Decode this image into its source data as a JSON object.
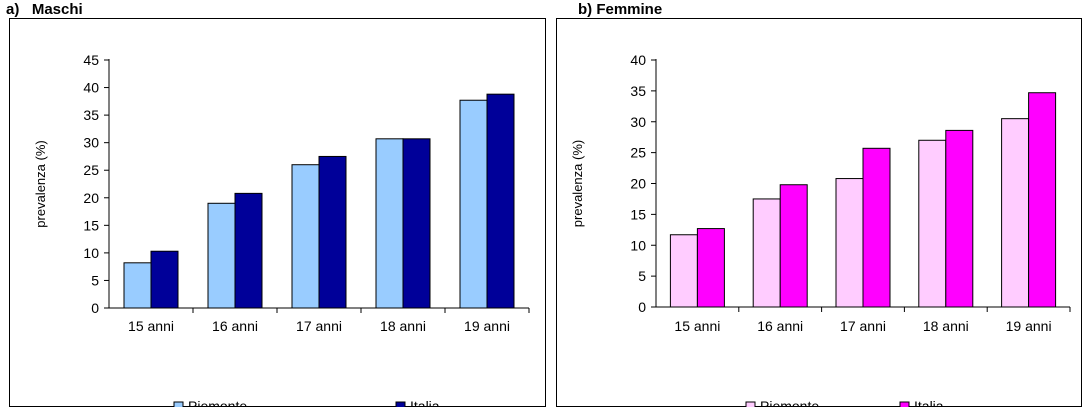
{
  "chart_data": [
    {
      "type": "bar",
      "panel_title": "a)   Maschi",
      "categories": [
        "15 anni",
        "16 anni",
        "17 anni",
        "18 anni",
        "19 anni"
      ],
      "series": [
        {
          "name": "Piemonte",
          "values": [
            8.2,
            19.0,
            26.0,
            30.7,
            37.7
          ],
          "color": "#99ccff"
        },
        {
          "name": "Italia",
          "values": [
            10.3,
            20.8,
            27.5,
            30.7,
            38.8
          ],
          "color": "#000099"
        }
      ],
      "ylabel": "prevalenza (%)",
      "ylim": [
        0,
        45
      ],
      "yticks": [
        0,
        5,
        10,
        15,
        20,
        25,
        30,
        35,
        40,
        45
      ],
      "grid": false,
      "legend_position": "bottom"
    },
    {
      "type": "bar",
      "panel_title": "b) Femmine",
      "categories": [
        "15 anni",
        "16 anni",
        "17 anni",
        "18 anni",
        "19 anni"
      ],
      "series": [
        {
          "name": "Piemonte",
          "values": [
            11.7,
            17.5,
            20.8,
            27.0,
            30.5
          ],
          "color": "#ffccff"
        },
        {
          "name": "Italia",
          "values": [
            12.7,
            19.8,
            25.7,
            28.6,
            34.7
          ],
          "color": "#ff00ff"
        }
      ],
      "ylabel": "prevalenza (%)",
      "ylim": [
        0,
        40
      ],
      "yticks": [
        0,
        5,
        10,
        15,
        20,
        25,
        30,
        35,
        40
      ],
      "grid": false,
      "legend_position": "bottom"
    }
  ]
}
